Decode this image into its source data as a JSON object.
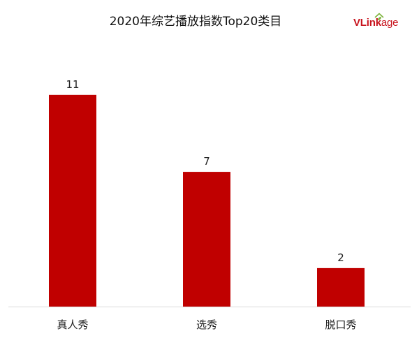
{
  "header": {
    "title": "2020年综艺播放指数Top20类目",
    "logo": {
      "text_main": "VLink",
      "text_tail": "age",
      "mark_icon": "house-leaf-icon",
      "color": "#c8141e",
      "mark_color": "#7bb23a"
    }
  },
  "chart_data": {
    "type": "bar",
    "title": "2020年综艺播放指数Top20类目",
    "xlabel": "",
    "ylabel": "",
    "categories": [
      "真人秀",
      "选秀",
      "脱口秀"
    ],
    "values": [
      11,
      7,
      2
    ],
    "data_labels": [
      "11",
      "7",
      "2"
    ],
    "ylim": [
      0,
      12.3
    ],
    "grid": false,
    "legend": "none",
    "bar_color": "#c00000",
    "axis_color": "#d9d9d9"
  }
}
